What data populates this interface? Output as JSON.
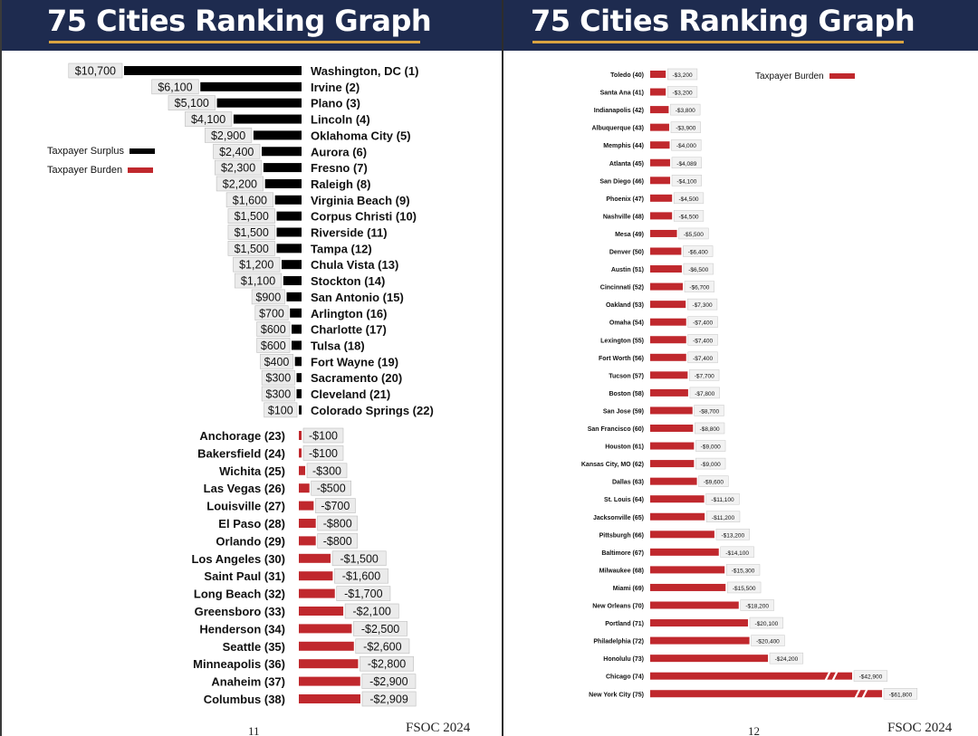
{
  "left_page": {
    "title": "75 Cities Ranking Graph",
    "page_number": "11",
    "footer": "FSOC 2024",
    "legend": [
      {
        "label": "Taxpayer Surplus",
        "color": "#000000"
      },
      {
        "label": "Taxpayer Burden",
        "color": "#c0282d"
      }
    ]
  },
  "right_page": {
    "title": "75 Cities Ranking Graph",
    "page_number": "12",
    "footer": "FSOC 2024",
    "legend": [
      {
        "label": "Taxpayer Burden",
        "color": "#c0282d"
      }
    ]
  },
  "colors": {
    "surplus": "#000000",
    "burden": "#c0282d",
    "header": "#1e2b4f",
    "accent": "#d9a441"
  },
  "chart_data": [
    {
      "type": "bar",
      "orientation": "horizontal",
      "title": "75 Cities Ranking Graph",
      "categories": [
        "Washington, DC (1)",
        "Irvine (2)",
        "Plano (3)",
        "Lincoln (4)",
        "Oklahoma City (5)",
        "Aurora (6)",
        "Fresno (7)",
        "Raleigh (8)",
        "Virginia Beach (9)",
        "Corpus Christi (10)",
        "Riverside (11)",
        "Tampa (12)",
        "Chula Vista (13)",
        "Stockton (14)",
        "San Antonio (15)",
        "Arlington (16)",
        "Charlotte (17)",
        "Tulsa (18)",
        "Fort Wayne (19)",
        "Sacramento (20)",
        "Cleveland (21)",
        "Colorado Springs (22)",
        "Anchorage (23)",
        "Bakersfield (24)",
        "Wichita (25)",
        "Las Vegas (26)",
        "Louisville (27)",
        "El Paso (28)",
        "Orlando (29)",
        "Los Angeles (30)",
        "Saint Paul (31)",
        "Long Beach (32)",
        "Greensboro (33)",
        "Henderson (34)",
        "Seattle (35)",
        "Minneapolis (36)",
        "Anaheim (37)",
        "Columbus (38)"
      ],
      "values": [
        10700,
        6100,
        5100,
        4100,
        2900,
        2400,
        2300,
        2200,
        1600,
        1500,
        1500,
        1500,
        1200,
        1100,
        900,
        700,
        600,
        600,
        400,
        300,
        300,
        100,
        -100,
        -100,
        -300,
        -500,
        -700,
        -800,
        -800,
        -1500,
        -1600,
        -1700,
        -2100,
        -2500,
        -2600,
        -2800,
        -2900,
        -2909
      ],
      "labels": [
        "$10,700",
        "$6,100",
        "$5,100",
        "$4,100",
        "$2,900",
        "$2,400",
        "$2,300",
        "$2,200",
        "$1,600",
        "$1,500",
        "$1,500",
        "$1,500",
        "$1,200",
        "$1,100",
        "$900",
        "$700",
        "$600",
        "$600",
        "$400",
        "$300",
        "$300",
        "$100",
        "-$100",
        "-$100",
        "-$300",
        "-$500",
        "-$700",
        "-$800",
        "-$800",
        "-$1,500",
        "-$1,600",
        "-$1,700",
        "-$2,100",
        "-$2,500",
        "-$2,600",
        "-$2,800",
        "-$2,900",
        "-$2,909"
      ]
    },
    {
      "type": "bar",
      "orientation": "horizontal",
      "title": "75 Cities Ranking Graph",
      "categories": [
        "Toledo (40)",
        "Santa Ana (41)",
        "Indianapolis (42)",
        "Albuquerque (43)",
        "Memphis (44)",
        "Atlanta (45)",
        "San Diego (46)",
        "Phoenix (47)",
        "Nashville (48)",
        "Mesa (49)",
        "Denver (50)",
        "Austin (51)",
        "Cincinnati (52)",
        "Oakland (53)",
        "Omaha (54)",
        "Lexington (55)",
        "Fort Worth (56)",
        "Tucson (57)",
        "Boston (58)",
        "San Jose (59)",
        "San Francisco (60)",
        "Houston (61)",
        "Kansas City, MO (62)",
        "Dallas (63)",
        "St. Louis (64)",
        "Jacksonville (65)",
        "Pittsburgh (66)",
        "Baltimore (67)",
        "Milwaukee (68)",
        "Miami (69)",
        "New Orleans (70)",
        "Portland (71)",
        "Philadelphia (72)",
        "Honolulu (73)",
        "Chicago (74)",
        "New York City (75)"
      ],
      "values": [
        -3200,
        -3200,
        -3800,
        -3900,
        -4000,
        -4089,
        -4100,
        -4500,
        -4500,
        -5500,
        -6400,
        -6500,
        -6700,
        -7300,
        -7400,
        -7400,
        -7400,
        -7700,
        -7800,
        -8700,
        -8800,
        -9000,
        -9000,
        -9600,
        -11100,
        -11200,
        -13200,
        -14100,
        -15300,
        -15500,
        -18200,
        -20100,
        -20400,
        -24200,
        -42900,
        -61800
      ],
      "labels": [
        "-$3,200",
        "-$3,200",
        "-$3,800",
        "-$3,900",
        "-$4,000",
        "-$4,089",
        "-$4,100",
        "-$4,500",
        "-$4,500",
        "-$5,500",
        "-$6,400",
        "-$6,500",
        "-$6,700",
        "-$7,300",
        "-$7,400",
        "-$7,400",
        "-$7,400",
        "-$7,700",
        "-$7,800",
        "-$8,700",
        "-$8,800",
        "-$9,000",
        "-$9,000",
        "-$9,600",
        "-$11,100",
        "-$11,200",
        "-$13,200",
        "-$14,100",
        "-$15,300",
        "-$15,500",
        "-$18,200",
        "-$20,100",
        "-$20,400",
        "-$24,200",
        "-$42,900",
        "-$61,800"
      ],
      "axis_break": [
        "Chicago (74)",
        "New York City (75)"
      ]
    }
  ]
}
